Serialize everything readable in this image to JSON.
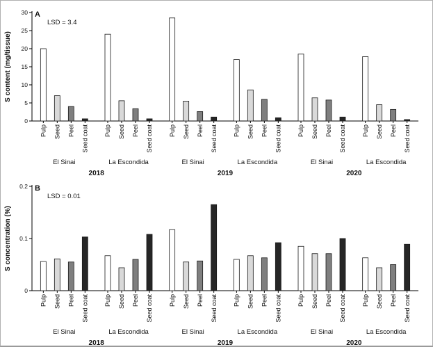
{
  "figure": {
    "background": "#ffffff",
    "border_color": "#b0b0b0"
  },
  "chart_data": [
    {
      "type": "bar",
      "panel_label": "A",
      "annotation": "LSD = 3.4",
      "ylabel": "S content (mg/tissue)",
      "ylim": [
        0,
        30
      ],
      "ytick_values": [
        0,
        5,
        10,
        15,
        20,
        25,
        30
      ],
      "ytick_labels": [
        "0",
        "5",
        "10",
        "15",
        "20",
        "25",
        "30"
      ],
      "tissues": [
        "Pulp",
        "Seed",
        "Peel",
        "Seed coat"
      ],
      "bar_colors": [
        "#ffffff",
        "#d9d9d9",
        "#7f7f7f",
        "#262626"
      ],
      "bar_stroke": "#1a1a1a",
      "years": [
        "2018",
        "2019",
        "2020"
      ],
      "groups": [
        {
          "year": "2018",
          "location": "El Sinai",
          "values": [
            20.0,
            7.0,
            4.0,
            0.6
          ]
        },
        {
          "year": "2018",
          "location": "La Escondida",
          "values": [
            24.0,
            5.6,
            3.4,
            0.6
          ]
        },
        {
          "year": "2019",
          "location": "El Sinai",
          "values": [
            28.5,
            5.5,
            2.6,
            1.1
          ]
        },
        {
          "year": "2019",
          "location": "La Escondida",
          "values": [
            17.0,
            8.6,
            6.0,
            0.9
          ]
        },
        {
          "year": "2020",
          "location": "El Sinai",
          "values": [
            18.5,
            6.4,
            5.8,
            1.1
          ]
        },
        {
          "year": "2020",
          "location": "La Escondida",
          "values": [
            17.8,
            4.5,
            3.2,
            0.4
          ]
        }
      ]
    },
    {
      "type": "bar",
      "panel_label": "B",
      "annotation": "LSD = 0.01",
      "ylabel": "S concentration (%)",
      "ylim": [
        0,
        0.2
      ],
      "ytick_values": [
        0,
        0.1,
        0.2
      ],
      "ytick_labels": [
        "0",
        "0.1",
        "0.2"
      ],
      "tissues": [
        "Pulp",
        "Seed",
        "Peel",
        "Seed coat"
      ],
      "bar_colors": [
        "#ffffff",
        "#d9d9d9",
        "#7f7f7f",
        "#262626"
      ],
      "bar_stroke": "#1a1a1a",
      "years": [
        "2018",
        "2019",
        "2020"
      ],
      "groups": [
        {
          "year": "2018",
          "location": "El Sinai",
          "values": [
            0.056,
            0.061,
            0.055,
            0.103
          ]
        },
        {
          "year": "2018",
          "location": "La Escondida",
          "values": [
            0.067,
            0.044,
            0.06,
            0.108
          ]
        },
        {
          "year": "2019",
          "location": "El Sinai",
          "values": [
            0.117,
            0.055,
            0.057,
            0.165
          ]
        },
        {
          "year": "2019",
          "location": "La Escondida",
          "values": [
            0.06,
            0.067,
            0.063,
            0.092
          ]
        },
        {
          "year": "2020",
          "location": "El Sinai",
          "values": [
            0.085,
            0.071,
            0.071,
            0.1
          ]
        },
        {
          "year": "2020",
          "location": "La Escondida",
          "values": [
            0.063,
            0.044,
            0.05,
            0.089
          ]
        }
      ]
    }
  ]
}
